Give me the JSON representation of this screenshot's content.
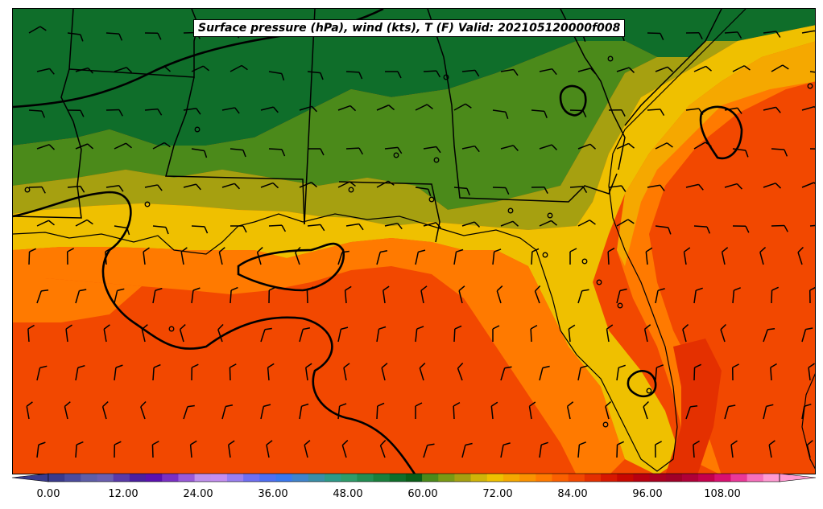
{
  "title": "Surface pressure (hPa), wind (kts), T (F) Valid: 202105120000f008",
  "colorbar": {
    "tick_labels": [
      "0.00",
      "12.00",
      "24.00",
      "36.00",
      "48.00",
      "60.00",
      "72.00",
      "84.00",
      "96.00",
      "108.00"
    ],
    "colors": [
      "#3a3a8c",
      "#4b4b9e",
      "#5e5ea8",
      "#6b5fb0",
      "#5a3aa8",
      "#4b1fa0",
      "#5c10b0",
      "#7a2fc4",
      "#9a5ad8",
      "#c090ec",
      "#c48ef0",
      "#9a7ff0",
      "#6f6ff2",
      "#4f6ff2",
      "#3a78ee",
      "#3f84cc",
      "#3a8ea8",
      "#2e9a88",
      "#2f9c6a",
      "#238d52",
      "#1a7f3c",
      "#0f6e2a",
      "#0a5e18",
      "#4b8a1a",
      "#7a9a14",
      "#a6a010",
      "#d0b408",
      "#efc000",
      "#f5a800",
      "#fb9200",
      "#ff7a00",
      "#fb6000",
      "#f24800",
      "#e43000",
      "#d81800",
      "#c80800",
      "#b80010",
      "#aa0020",
      "#a00028",
      "#b00038",
      "#c4004c",
      "#d81070",
      "#ea3898",
      "#f670bc",
      "#ff9ad2"
    ]
  },
  "map": {
    "contour_color": "#000000",
    "barb_color": "#000000",
    "temperature_fill_colors": {
      "north_green_dark": "#0f6e2a",
      "green_mid": "#4b8a1a",
      "olive": "#a6a010",
      "yellow": "#efc000",
      "orange_light": "#f5a800",
      "orange": "#ff7a00",
      "orange_red": "#f24800",
      "red": "#e43000"
    }
  }
}
